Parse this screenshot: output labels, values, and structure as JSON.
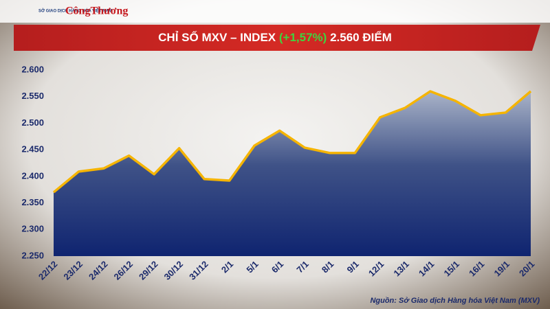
{
  "header": {
    "logo_left": "SỞ GIAO DỊCH HÀNG HÓA VIỆT NAM",
    "logo_right": "CôngThương"
  },
  "chart_data": {
    "type": "area",
    "title": {
      "main": "CHỈ SỐ MXV – INDEX",
      "change": "(+1,57%)",
      "value": "2.560 ĐIỂM"
    },
    "source": "Nguồn: Sở Giao dịch Hàng hóa Việt Nam (MXV)",
    "categories": [
      "22/12",
      "23/12",
      "24/12",
      "26/12",
      "29/12",
      "30/12",
      "31/12",
      "2/1",
      "5/1",
      "6/1",
      "7/1",
      "8/1",
      "9/1",
      "12/1",
      "13/1",
      "14/1",
      "15/1",
      "16/1",
      "19/1",
      "20/1"
    ],
    "values": [
      2370,
      2409,
      2415,
      2439,
      2404,
      2453,
      2395,
      2392,
      2458,
      2486,
      2454,
      2444,
      2444,
      2511,
      2529,
      2560,
      2542,
      2515,
      2520,
      2560
    ],
    "color": "#f5b400",
    "ylim": [
      2250,
      2600
    ],
    "yticks": [
      {
        "value": 2250,
        "label": "2.250"
      },
      {
        "value": 2300,
        "label": "2.300"
      },
      {
        "value": 2350,
        "label": "2.350"
      },
      {
        "value": 2400,
        "label": "2.400"
      },
      {
        "value": 2450,
        "label": "2.450"
      },
      {
        "value": 2500,
        "label": "2.500"
      },
      {
        "value": 2550,
        "label": "2.550"
      },
      {
        "value": 2600,
        "label": "2.600"
      }
    ],
    "grid": false
  }
}
